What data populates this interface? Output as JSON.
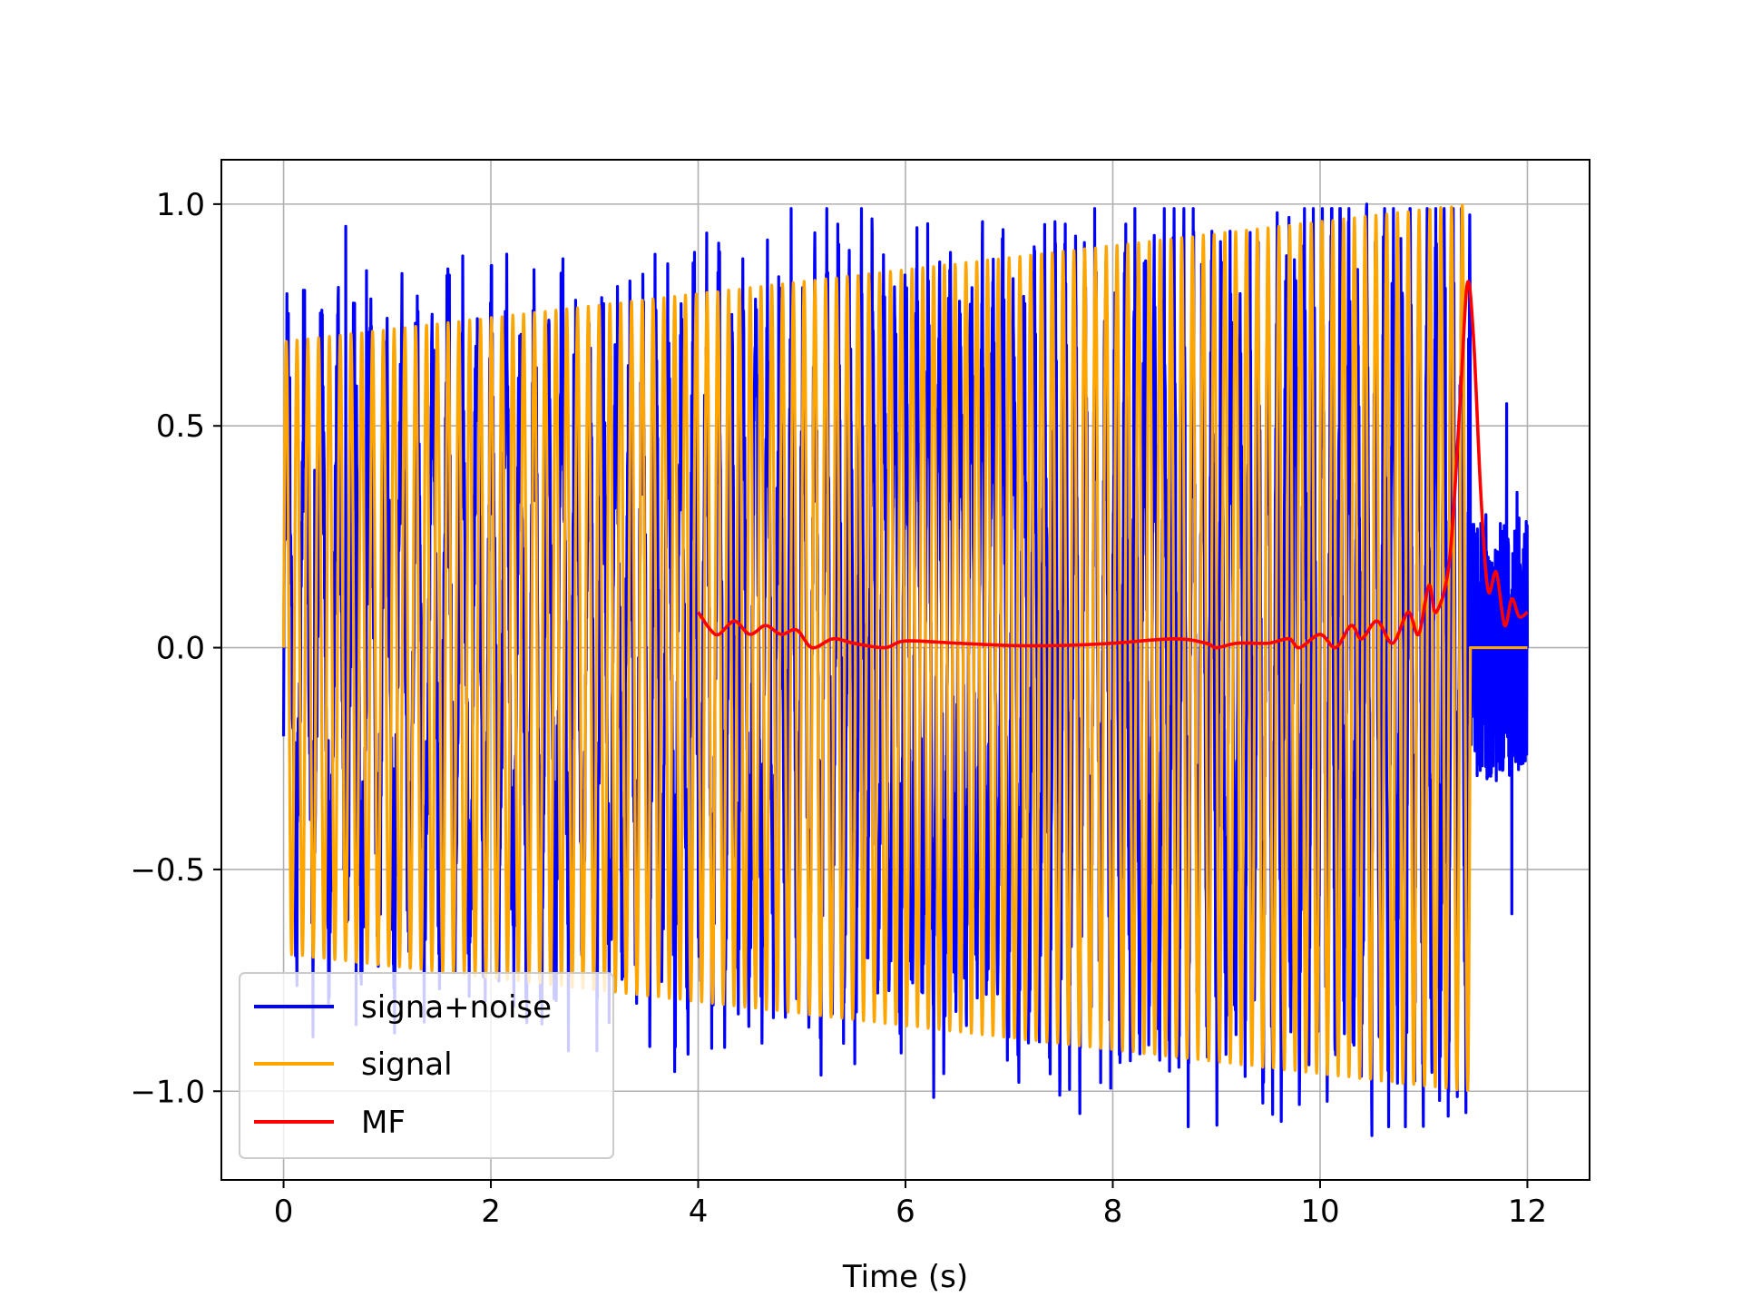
{
  "chart_data": {
    "type": "line",
    "title": "",
    "xlabel": "Time (s)",
    "ylabel": "",
    "xlim": [
      -0.6,
      12.6
    ],
    "ylim": [
      -1.2,
      1.1
    ],
    "xticks": [
      0,
      2,
      4,
      6,
      8,
      10,
      12
    ],
    "xtick_labels": [
      "0",
      "2",
      "4",
      "6",
      "8",
      "10",
      "12"
    ],
    "yticks": [
      1.0,
      0.5,
      0.0,
      -0.5,
      -1.0
    ],
    "ytick_labels": [
      "1.0",
      "0.5",
      "0.0",
      "−0.5",
      "−1.0"
    ],
    "grid": true,
    "legend_position": "lower-left",
    "series": [
      {
        "name": "signa+noise",
        "color": "#0000ff",
        "description": "noisy oscillating signal over 0 to 12 s, peaks up to about 1.0 and down to about -1.1",
        "points": [
          [
            0.0,
            -0.2
          ],
          [
            0.3,
            0.4
          ],
          [
            0.6,
            0.95
          ],
          [
            0.7,
            -0.85
          ],
          [
            0.8,
            0.85
          ],
          [
            1.6,
            0.84
          ],
          [
            2.8,
            0.66
          ],
          [
            4.4,
            0.65
          ],
          [
            8.2,
            -0.89
          ],
          [
            9.7,
            0.97
          ],
          [
            9.8,
            -1.03
          ],
          [
            10.45,
            1.0
          ],
          [
            10.5,
            -1.1
          ],
          [
            11.5,
            -0.1
          ],
          [
            11.6,
            0.3
          ],
          [
            11.7,
            -0.3
          ],
          [
            11.8,
            0.55
          ],
          [
            11.85,
            -0.6
          ],
          [
            11.9,
            0.35
          ],
          [
            12.0,
            0.0
          ]
        ]
      },
      {
        "name": "signal",
        "color": "#ffa500",
        "envelope_start": 0.69,
        "envelope_end": 1.0,
        "t_start": 0.0,
        "t_end": 11.45,
        "cycles": 110,
        "flat_after": [
          11.45,
          12.0,
          0.0
        ]
      },
      {
        "name": "MF",
        "color": "#ff0000",
        "points": [
          [
            4.0,
            0.08
          ],
          [
            4.12,
            0.04
          ],
          [
            4.2,
            0.03
          ],
          [
            4.35,
            0.06
          ],
          [
            4.5,
            0.03
          ],
          [
            4.65,
            0.05
          ],
          [
            4.8,
            0.03
          ],
          [
            4.95,
            0.04
          ],
          [
            5.1,
            0.0
          ],
          [
            5.3,
            0.02
          ],
          [
            5.5,
            0.01
          ],
          [
            5.8,
            0.0
          ],
          [
            6.0,
            0.015
          ],
          [
            6.5,
            0.01
          ],
          [
            7.0,
            0.005
          ],
          [
            7.5,
            0.005
          ],
          [
            8.0,
            0.01
          ],
          [
            8.6,
            0.02
          ],
          [
            8.9,
            0.01
          ],
          [
            9.0,
            0.0
          ],
          [
            9.2,
            0.01
          ],
          [
            9.5,
            0.01
          ],
          [
            9.7,
            0.02
          ],
          [
            9.8,
            0.0
          ],
          [
            10.0,
            0.03
          ],
          [
            10.15,
            0.0
          ],
          [
            10.3,
            0.05
          ],
          [
            10.4,
            0.02
          ],
          [
            10.55,
            0.06
          ],
          [
            10.7,
            0.01
          ],
          [
            10.85,
            0.08
          ],
          [
            10.95,
            0.03
          ],
          [
            11.05,
            0.14
          ],
          [
            11.12,
            0.08
          ],
          [
            11.25,
            0.2
          ],
          [
            11.35,
            0.55
          ],
          [
            11.42,
            0.82
          ],
          [
            11.48,
            0.7
          ],
          [
            11.55,
            0.35
          ],
          [
            11.62,
            0.13
          ],
          [
            11.7,
            0.17
          ],
          [
            11.78,
            0.05
          ],
          [
            11.85,
            0.11
          ],
          [
            11.92,
            0.07
          ],
          [
            12.0,
            0.08
          ]
        ]
      }
    ]
  }
}
